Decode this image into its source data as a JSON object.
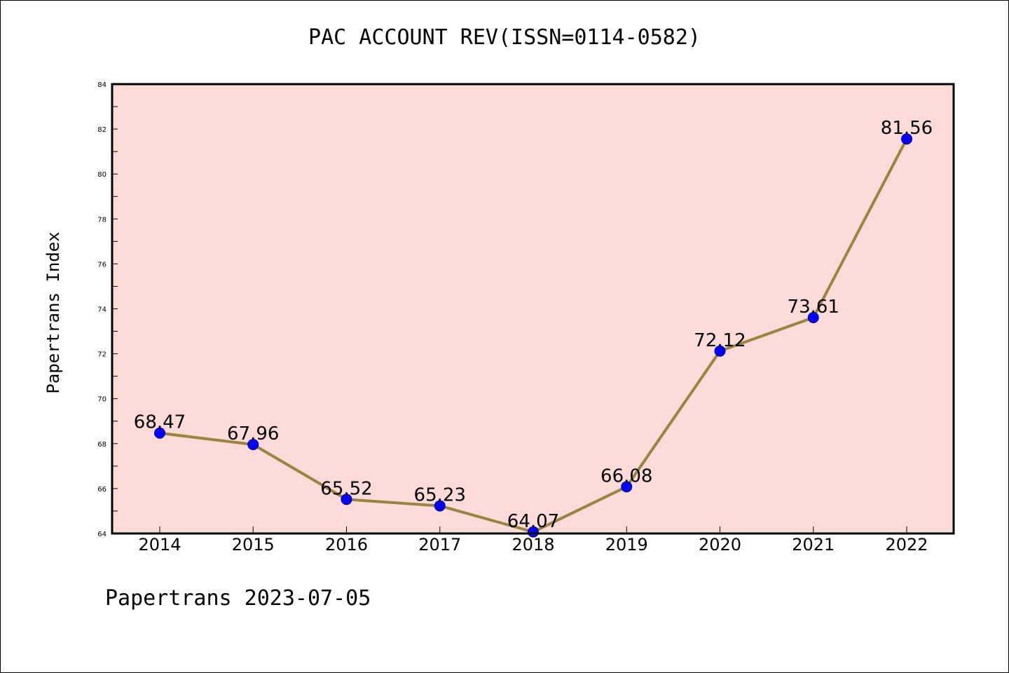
{
  "title": "PAC ACCOUNT REV(ISSN=0114-0582)",
  "ylabel": "Papertrans Index",
  "footer": "Papertrans 2023-07-05",
  "colors": {
    "plot_background": "#fddbd8",
    "line": "#9b8441",
    "marker": "#0000ff"
  },
  "chart_data": {
    "type": "line",
    "title": "PAC ACCOUNT REV(ISSN=0114-0582)",
    "xlabel": "",
    "ylabel": "Papertrans Index",
    "x": [
      "2014",
      "2015",
      "2016",
      "2017",
      "2018",
      "2019",
      "2020",
      "2021",
      "2022"
    ],
    "series": [
      {
        "values": [
          68.47,
          67.96,
          65.52,
          65.23,
          64.07,
          66.08,
          72.12,
          73.61,
          81.56
        ],
        "labels": [
          "68.47",
          "67.96",
          "65.52",
          "65.23",
          "64.07",
          "66.08",
          "72.12",
          "73.61",
          "81.56"
        ]
      }
    ],
    "ylim": [
      64,
      84
    ],
    "yticks": [
      "64",
      "66",
      "68",
      "70",
      "72",
      "74",
      "76",
      "78",
      "80",
      "82",
      "84"
    ],
    "grid": false,
    "legend": "none"
  }
}
